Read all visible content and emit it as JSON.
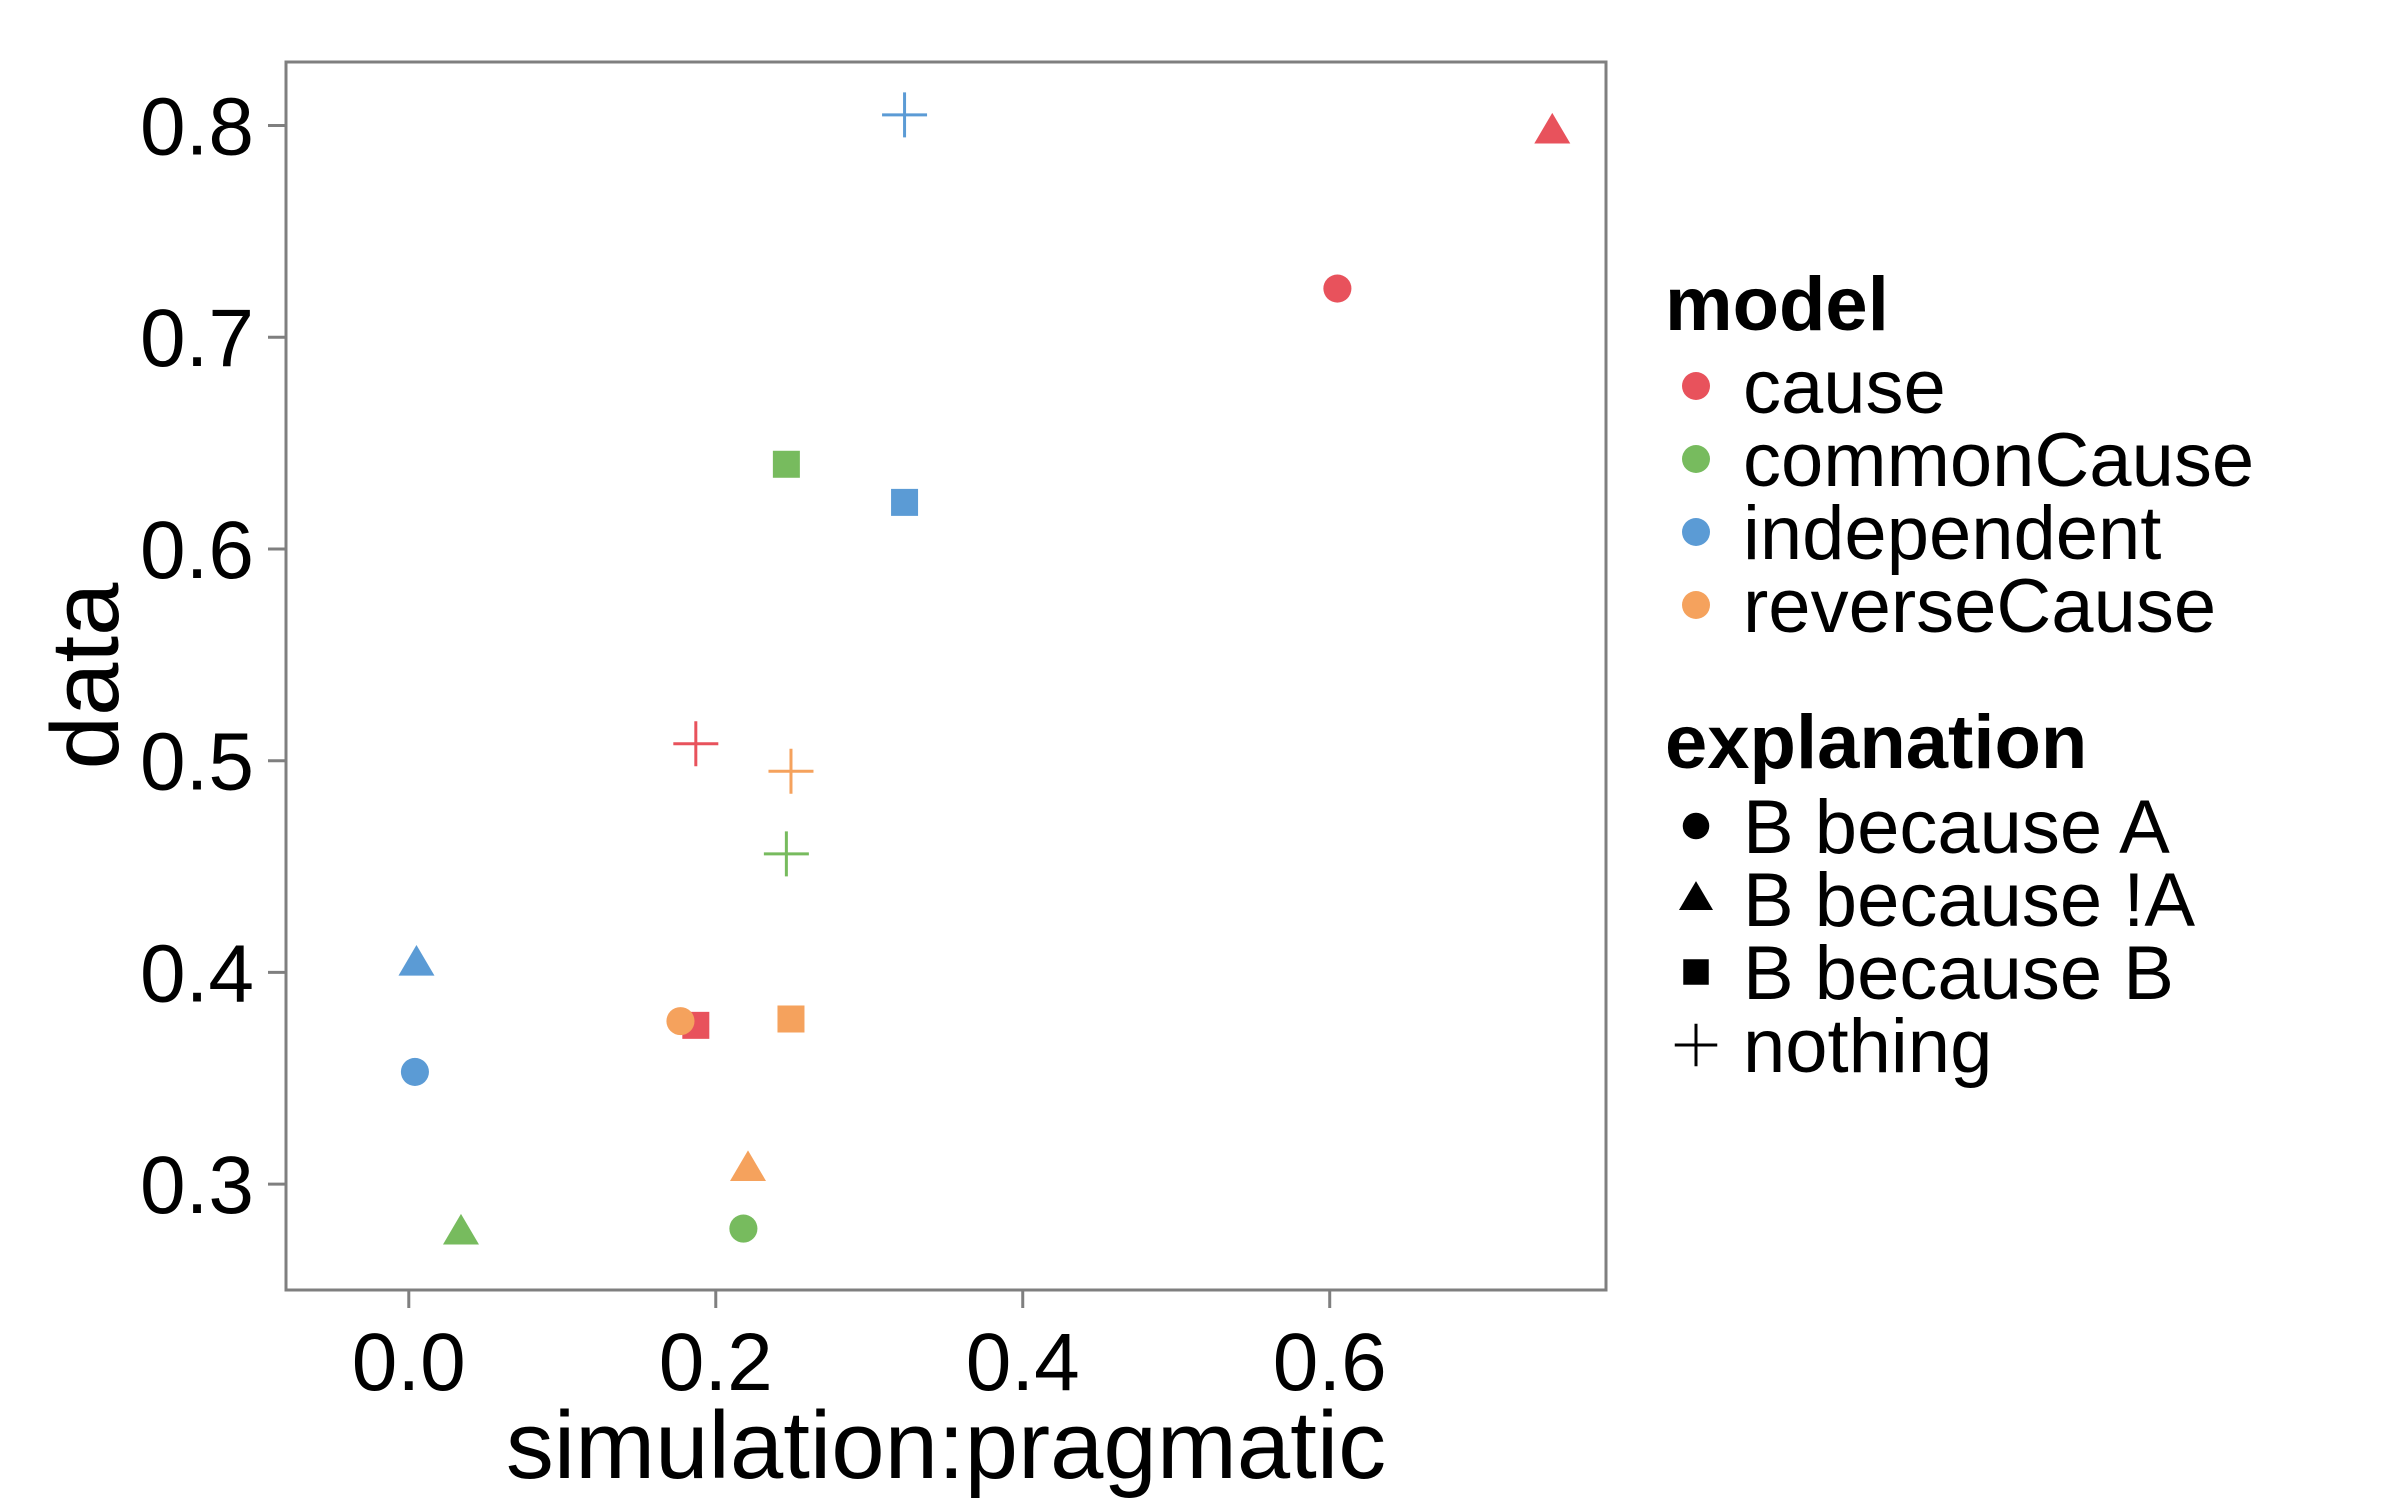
{
  "chart_data": {
    "type": "scatter",
    "xlabel": "simulation:pragmatic",
    "ylabel": "data",
    "xlim": [
      -0.08,
      0.78
    ],
    "ylim": [
      0.25,
      0.83
    ],
    "xticks": [
      0.0,
      0.2,
      0.4,
      0.6
    ],
    "xtick_labels": [
      "0.0",
      "0.2",
      "0.4",
      "0.6"
    ],
    "yticks": [
      0.3,
      0.4,
      0.5,
      0.6,
      0.7,
      0.8
    ],
    "ytick_labels": [
      "0.3",
      "0.4",
      "0.5",
      "0.6",
      "0.7",
      "0.8"
    ],
    "grid": false,
    "legend_position": "right",
    "legend": {
      "color_title": "model",
      "color_entries": [
        {
          "label": "cause",
          "color": "#E8525C"
        },
        {
          "label": "commonCause",
          "color": "#77BB5E"
        },
        {
          "label": "independent",
          "color": "#5B9BD5"
        },
        {
          "label": "reverseCause",
          "color": "#F5A25D"
        }
      ],
      "shape_title": "explanation",
      "shape_entries": [
        {
          "label": "B because A",
          "shape": "circle"
        },
        {
          "label": "B because !A",
          "shape": "triangle"
        },
        {
          "label": "B because B",
          "shape": "square"
        },
        {
          "label": "nothing",
          "shape": "plus"
        }
      ]
    },
    "points": [
      {
        "model": "cause",
        "explanation": "B because A",
        "x": 0.605,
        "y": 0.723
      },
      {
        "model": "cause",
        "explanation": "B because !A",
        "x": 0.745,
        "y": 0.797
      },
      {
        "model": "cause",
        "explanation": "B because B",
        "x": 0.187,
        "y": 0.375
      },
      {
        "model": "cause",
        "explanation": "nothing",
        "x": 0.187,
        "y": 0.508
      },
      {
        "model": "commonCause",
        "explanation": "B because A",
        "x": 0.218,
        "y": 0.279
      },
      {
        "model": "commonCause",
        "explanation": "B because !A",
        "x": 0.034,
        "y": 0.277
      },
      {
        "model": "commonCause",
        "explanation": "B because B",
        "x": 0.246,
        "y": 0.64
      },
      {
        "model": "commonCause",
        "explanation": "nothing",
        "x": 0.246,
        "y": 0.456
      },
      {
        "model": "independent",
        "explanation": "B because A",
        "x": 0.004,
        "y": 0.353
      },
      {
        "model": "independent",
        "explanation": "B because !A",
        "x": 0.005,
        "y": 0.404
      },
      {
        "model": "independent",
        "explanation": "B because B",
        "x": 0.323,
        "y": 0.622
      },
      {
        "model": "independent",
        "explanation": "nothing",
        "x": 0.323,
        "y": 0.805
      },
      {
        "model": "reverseCause",
        "explanation": "B because A",
        "x": 0.177,
        "y": 0.377
      },
      {
        "model": "reverseCause",
        "explanation": "B because !A",
        "x": 0.221,
        "y": 0.307
      },
      {
        "model": "reverseCause",
        "explanation": "B because B",
        "x": 0.249,
        "y": 0.378
      },
      {
        "model": "reverseCause",
        "explanation": "nothing",
        "x": 0.249,
        "y": 0.495
      }
    ]
  }
}
